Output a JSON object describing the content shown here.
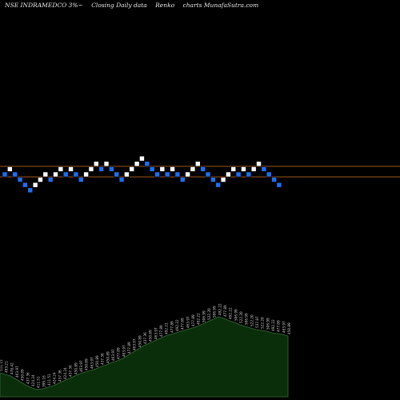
{
  "header": {
    "symbol": "NSE INDRAMEDCO 3%~",
    "type_label": "Closing Daily data",
    "chart_kind": "Renko",
    "watermark": "charts MunafaSutra.com"
  },
  "colors": {
    "background": "#000000",
    "up_brick": "#ffffff",
    "down_brick": "#1e6ff0",
    "resistance_line": "#b5651d",
    "volume_fill": "#0a2e0a",
    "volume_stroke": "#3a6a3a",
    "label_text": "#cfcfcf"
  },
  "chart_data": {
    "type": "renko",
    "brick_percent": 3,
    "bricks": [
      {
        "d": "down",
        "l": 0
      },
      {
        "d": "up",
        "l": 1
      },
      {
        "d": "down",
        "l": 0
      },
      {
        "d": "down",
        "l": -1
      },
      {
        "d": "down",
        "l": -2
      },
      {
        "d": "down",
        "l": -3
      },
      {
        "d": "up",
        "l": -2
      },
      {
        "d": "up",
        "l": -1
      },
      {
        "d": "up",
        "l": 0
      },
      {
        "d": "down",
        "l": -1
      },
      {
        "d": "up",
        "l": 0
      },
      {
        "d": "up",
        "l": 1
      },
      {
        "d": "down",
        "l": 0
      },
      {
        "d": "up",
        "l": 1
      },
      {
        "d": "down",
        "l": 0
      },
      {
        "d": "down",
        "l": -1
      },
      {
        "d": "up",
        "l": 0
      },
      {
        "d": "up",
        "l": 1
      },
      {
        "d": "up",
        "l": 2
      },
      {
        "d": "down",
        "l": 1
      },
      {
        "d": "up",
        "l": 2
      },
      {
        "d": "down",
        "l": 1
      },
      {
        "d": "down",
        "l": 0
      },
      {
        "d": "down",
        "l": -1
      },
      {
        "d": "up",
        "l": 0
      },
      {
        "d": "up",
        "l": 1
      },
      {
        "d": "up",
        "l": 2
      },
      {
        "d": "up",
        "l": 3
      },
      {
        "d": "down",
        "l": 2
      },
      {
        "d": "down",
        "l": 1
      },
      {
        "d": "down",
        "l": 0
      },
      {
        "d": "up",
        "l": 1
      },
      {
        "d": "down",
        "l": 0
      },
      {
        "d": "up",
        "l": 1
      },
      {
        "d": "down",
        "l": 0
      },
      {
        "d": "down",
        "l": -1
      },
      {
        "d": "up",
        "l": 0
      },
      {
        "d": "up",
        "l": 1
      },
      {
        "d": "up",
        "l": 2
      },
      {
        "d": "down",
        "l": 1
      },
      {
        "d": "down",
        "l": 0
      },
      {
        "d": "down",
        "l": -1
      },
      {
        "d": "down",
        "l": -2
      },
      {
        "d": "up",
        "l": -1
      },
      {
        "d": "up",
        "l": 0
      },
      {
        "d": "up",
        "l": 1
      },
      {
        "d": "down",
        "l": 0
      },
      {
        "d": "up",
        "l": 1
      },
      {
        "d": "down",
        "l": 0
      },
      {
        "d": "up",
        "l": 1
      },
      {
        "d": "up",
        "l": 2
      },
      {
        "d": "down",
        "l": 1
      },
      {
        "d": "down",
        "l": 0
      },
      {
        "d": "down",
        "l": -1
      },
      {
        "d": "down",
        "l": -2
      }
    ],
    "resistance_levels": [
      1,
      -1
    ],
    "volume": [
      {
        "v": 0.3,
        "p": "511.15"
      },
      {
        "v": 0.28,
        "p": "493.21"
      },
      {
        "v": 0.26,
        "p": "478.42"
      },
      {
        "v": 0.22,
        "p": "463.97"
      },
      {
        "v": 0.18,
        "p": "450.89"
      },
      {
        "v": 0.14,
        "p": "437.36"
      },
      {
        "v": 0.11,
        "p": "424.24"
      },
      {
        "v": 0.09,
        "p": "411.51"
      },
      {
        "v": 0.1,
        "p": "399.16"
      },
      {
        "v": 0.12,
        "p": "411.51"
      },
      {
        "v": 0.14,
        "p": "424.24"
      },
      {
        "v": 0.17,
        "p": "437.36"
      },
      {
        "v": 0.2,
        "p": "424.24"
      },
      {
        "v": 0.23,
        "p": "437.36"
      },
      {
        "v": 0.26,
        "p": "450.89"
      },
      {
        "v": 0.29,
        "p": "463.97"
      },
      {
        "v": 0.31,
        "p": "450.89"
      },
      {
        "v": 0.33,
        "p": "463.97"
      },
      {
        "v": 0.35,
        "p": "450.89"
      },
      {
        "v": 0.38,
        "p": "437.36"
      },
      {
        "v": 0.4,
        "p": "450.89"
      },
      {
        "v": 0.43,
        "p": "463.97"
      },
      {
        "v": 0.45,
        "p": "477.89"
      },
      {
        "v": 0.48,
        "p": "463.97"
      },
      {
        "v": 0.52,
        "p": "477.89"
      },
      {
        "v": 0.56,
        "p": "463.97"
      },
      {
        "v": 0.6,
        "p": "450.89"
      },
      {
        "v": 0.64,
        "p": "437.36"
      },
      {
        "v": 0.67,
        "p": "450.89"
      },
      {
        "v": 0.7,
        "p": "463.97"
      },
      {
        "v": 0.73,
        "p": "477.89"
      },
      {
        "v": 0.76,
        "p": "492.22"
      },
      {
        "v": 0.78,
        "p": "477.89"
      },
      {
        "v": 0.8,
        "p": "492.22"
      },
      {
        "v": 0.82,
        "p": "477.89"
      },
      {
        "v": 0.84,
        "p": "463.97"
      },
      {
        "v": 0.86,
        "p": "477.89"
      },
      {
        "v": 0.88,
        "p": "492.22"
      },
      {
        "v": 0.91,
        "p": "506.99"
      },
      {
        "v": 0.94,
        "p": "522.20"
      },
      {
        "v": 0.97,
        "p": "506.99"
      },
      {
        "v": 1.0,
        "p": "492.22"
      },
      {
        "v": 0.98,
        "p": "477.89"
      },
      {
        "v": 0.95,
        "p": "492.22"
      },
      {
        "v": 0.93,
        "p": "506.99"
      },
      {
        "v": 0.9,
        "p": "522.20"
      },
      {
        "v": 0.88,
        "p": "506.99"
      },
      {
        "v": 0.86,
        "p": "522.20"
      },
      {
        "v": 0.84,
        "p": "537.87"
      },
      {
        "v": 0.83,
        "p": "522.20"
      },
      {
        "v": 0.82,
        "p": "506.99"
      },
      {
        "v": 0.8,
        "p": "492.22"
      },
      {
        "v": 0.79,
        "p": "477.89"
      },
      {
        "v": 0.78,
        "p": "463.97"
      },
      {
        "v": 0.76,
        "p": "450.89"
      }
    ]
  }
}
